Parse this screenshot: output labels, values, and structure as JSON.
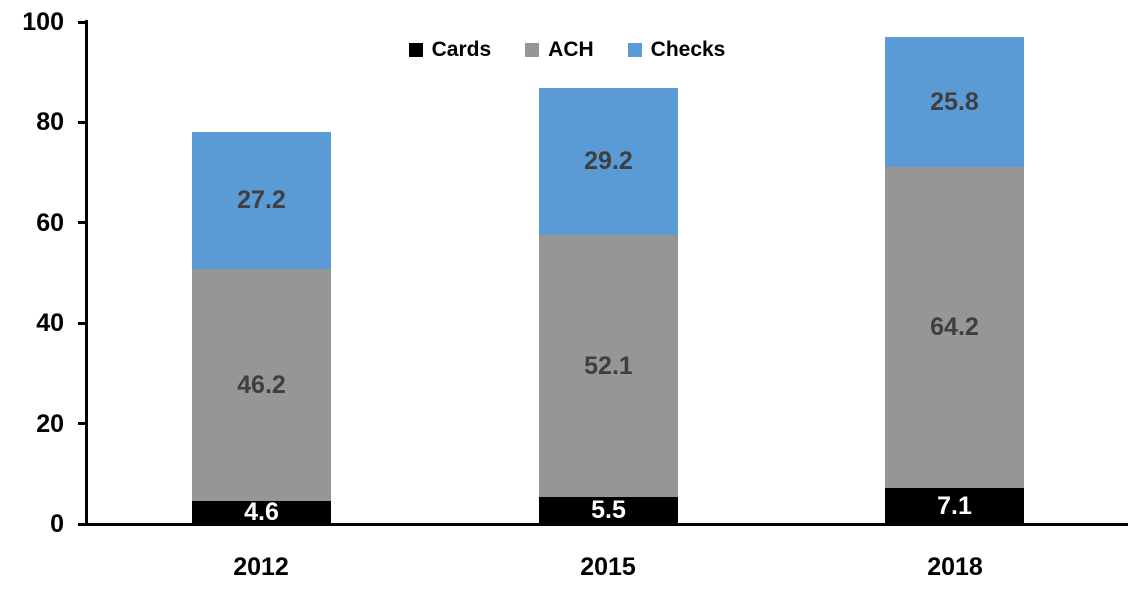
{
  "chart_data": {
    "type": "bar",
    "stacked": true,
    "title": "",
    "xlabel": "",
    "ylabel": "",
    "categories": [
      "2012",
      "2015",
      "2018"
    ],
    "series": [
      {
        "name": "Cards",
        "color": "#000000",
        "label_color": "#ffffff",
        "values": [
          4.6,
          5.5,
          7.1
        ]
      },
      {
        "name": "ACH",
        "color": "#969696",
        "label_color": "#3f3f3f",
        "values": [
          46.2,
          52.1,
          64.2
        ]
      },
      {
        "name": "Checks",
        "color": "#5b9bd5",
        "label_color": "#3f3f3f",
        "values": [
          27.2,
          29.2,
          25.8
        ]
      }
    ],
    "totals": [
      78.0,
      86.8,
      97.1
    ],
    "y_ticks": [
      0,
      20,
      40,
      60,
      80,
      100
    ],
    "ylim": [
      0,
      100
    ],
    "grid": false,
    "legend_position": "top-center",
    "axis_color": "#000000",
    "background_color": "#ffffff"
  }
}
